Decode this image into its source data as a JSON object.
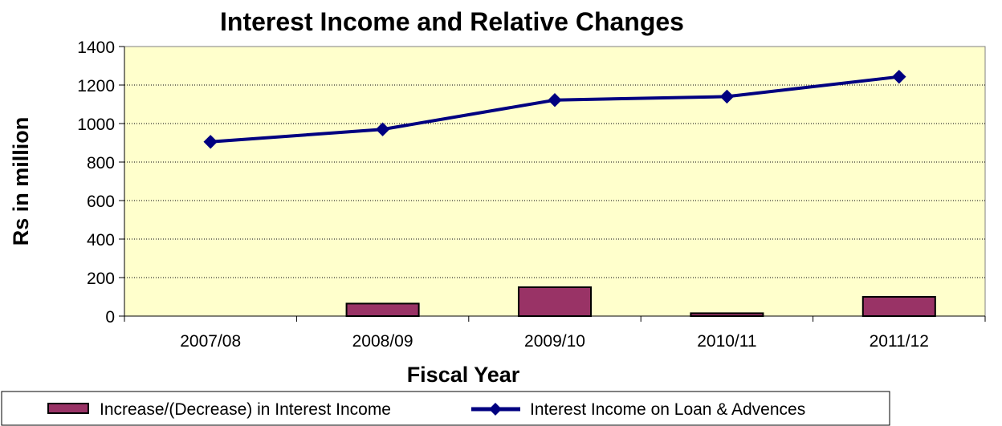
{
  "chart_data": {
    "type": "bar",
    "title": "Interest Income and Relative Changes",
    "xlabel": "Fiscal Year",
    "ylabel": "Rs in million",
    "categories": [
      "2007/08",
      "2008/09",
      "2009/10",
      "2010/11",
      "2011/12"
    ],
    "ylim": [
      0,
      1400
    ],
    "yticks": [
      0,
      200,
      400,
      600,
      800,
      1000,
      1200,
      1400
    ],
    "grid": true,
    "legend_position": "bottom",
    "series": [
      {
        "name": "Increase/(Decrease) in Interest Income",
        "type": "bar",
        "values": [
          null,
          65,
          150,
          15,
          100
        ],
        "color": "#993366"
      },
      {
        "name": "Interest Income on Loan & Advences",
        "type": "line",
        "marker": "diamond",
        "values": [
          905,
          970,
          1122,
          1140,
          1243
        ],
        "color": "#000080"
      }
    ],
    "plot_background": "#FFFFCC"
  }
}
